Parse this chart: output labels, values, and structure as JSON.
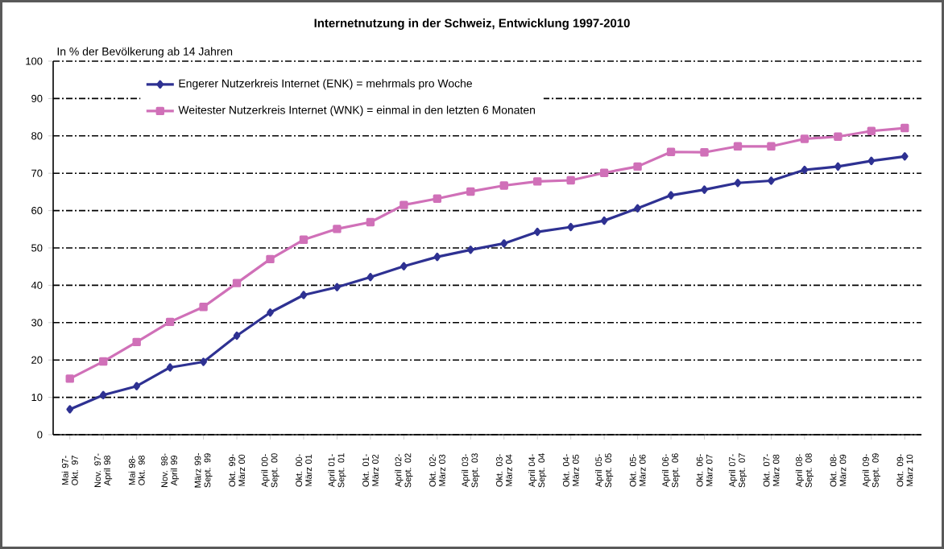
{
  "chart_data": {
    "type": "line",
    "title": "Internetnutzung in der Schweiz, Entwicklung 1997-2010",
    "ylabel": "In % der Bevölkerung ab 14 Jahren",
    "categories": [
      "Mai 97-Okt. 97",
      "Nov. 97-April 98",
      "Mai 98-Okt. 98",
      "Nov. 98-April 99",
      "März 99-Sept. 99",
      "Okt. 99-März 00",
      "April 00-Sept. 00",
      "Okt. 00-März 01",
      "April 01-Sept. 01",
      "Okt. 01-März 02",
      "April 02-Sept. 02",
      "Okt. 02-März 03",
      "April 03-Sept. 03",
      "Okt. 03-März 04",
      "April 04-Sept. 04",
      "Okt. 04-März 05",
      "April 05-Sept. 05",
      "Okt. 05-März 06",
      "April 06-Sept. 06",
      "Okt. 06-März 07",
      "April 07-Sept. 07",
      "Okt. 07-März 08",
      "April 08-Sept. 08",
      "Okt. 08-März 09",
      "April 09-Sept. 09",
      "Okt. 09-März 10"
    ],
    "series": [
      {
        "name": "Engerer Nutzerkreis Internet (ENK) = mehrmals pro Woche",
        "color": "#2e3192",
        "marker": "diamond",
        "values": [
          6.8,
          10.6,
          13.0,
          18.0,
          19.5,
          26.5,
          32.7,
          37.4,
          39.5,
          42.2,
          45.1,
          47.6,
          49.5,
          51.2,
          54.3,
          55.6,
          57.3,
          60.6,
          64.1,
          65.6,
          67.4,
          68.0,
          70.9,
          71.8,
          73.3,
          74.5
        ]
      },
      {
        "name": "Weitester Nutzerkreis Internet (WNK) = einmal in den letzten 6 Monaten",
        "color": "#d070b8",
        "marker": "square",
        "values": [
          15.0,
          19.6,
          24.8,
          30.2,
          34.2,
          40.6,
          47.0,
          52.2,
          55.1,
          56.9,
          61.5,
          63.2,
          65.1,
          66.7,
          67.8,
          68.1,
          70.1,
          71.8,
          75.7,
          75.6,
          77.2,
          77.2,
          79.2,
          79.8,
          81.3,
          82.1
        ]
      }
    ],
    "ylim": [
      0,
      100
    ],
    "yticks": [
      0,
      10,
      20,
      30,
      40,
      50,
      60,
      70,
      80,
      90,
      100
    ],
    "grid": "y",
    "legend": "top left"
  }
}
